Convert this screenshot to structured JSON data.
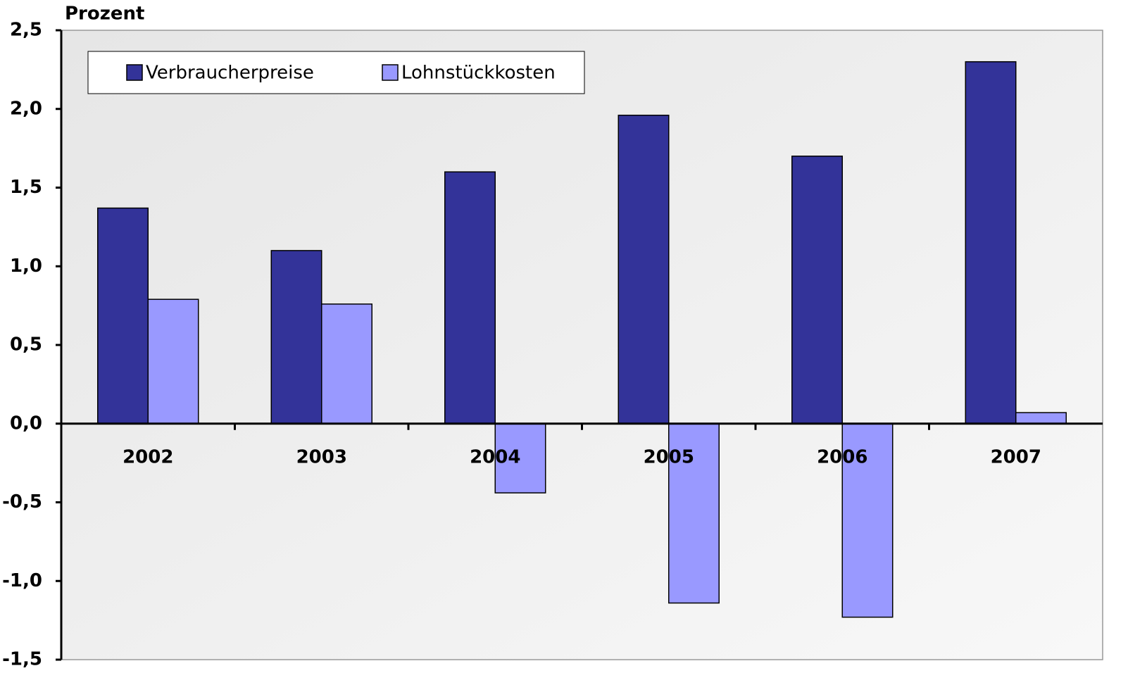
{
  "chart_data": {
    "type": "bar",
    "y_label": "Prozent",
    "categories": [
      "2002",
      "2003",
      "2004",
      "2005",
      "2006",
      "2007"
    ],
    "series": [
      {
        "name": "Verbraucherpreise",
        "color": "#333399",
        "values": [
          1.37,
          1.1,
          1.6,
          1.96,
          1.7,
          2.3
        ]
      },
      {
        "name": "Lohnstückkosten",
        "color": "#9999ff",
        "values": [
          0.79,
          0.76,
          -0.44,
          -1.14,
          -1.23,
          0.07
        ]
      }
    ],
    "ylim": [
      -1.5,
      2.5
    ],
    "yticks": [
      {
        "value": -1.5,
        "label": "-1,5"
      },
      {
        "value": -1.0,
        "label": "-1,0"
      },
      {
        "value": -0.5,
        "label": "-0,5"
      },
      {
        "value": 0,
        "label": "0,0"
      },
      {
        "value": 0.5,
        "label": "0,5"
      },
      {
        "value": 1.0,
        "label": "1,0"
      },
      {
        "value": 1.5,
        "label": "1,5"
      },
      {
        "value": 2.0,
        "label": "2,0"
      },
      {
        "value": 2.5,
        "label": "2,5"
      }
    ]
  }
}
